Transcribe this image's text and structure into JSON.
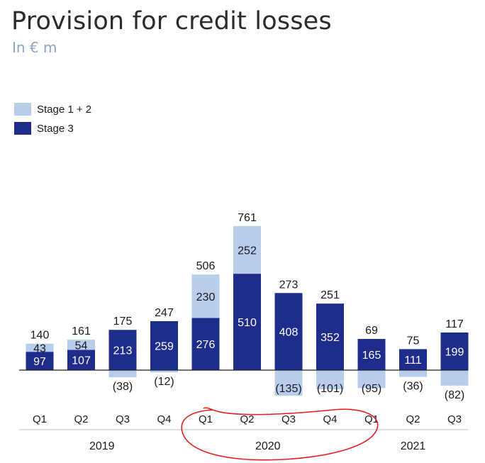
{
  "title": "Provision for credit losses",
  "subtitle": "In € m",
  "colors": {
    "stage12": "#b8cdec",
    "stage3": "#1e2d8c",
    "annotation": "#e02020",
    "axis": "#222222"
  },
  "legend": {
    "stage12_label": "Stage 1 + 2",
    "stage3_label": "Stage 3"
  },
  "chart_data": {
    "type": "bar",
    "stacked": true,
    "categories": [
      "Q1",
      "Q2",
      "Q3",
      "Q4",
      "Q1",
      "Q2",
      "Q3",
      "Q4",
      "Q1",
      "Q2",
      "Q3"
    ],
    "years": [
      {
        "label": "2019",
        "first": 0,
        "last": 3
      },
      {
        "label": "2020",
        "first": 4,
        "last": 7
      },
      {
        "label": "2021",
        "first": 8,
        "last": 10
      }
    ],
    "series": [
      {
        "name": "Stage 1 + 2",
        "values": [
          43,
          54,
          -38,
          -12,
          230,
          252,
          -135,
          -101,
          -95,
          -36,
          -82
        ],
        "labels": [
          "43",
          "54",
          "(38)",
          "(12)",
          "230",
          "252",
          "(135)",
          "(101)",
          "(95)",
          "(36)",
          "(82)"
        ]
      },
      {
        "name": "Stage 3",
        "values": [
          97,
          107,
          213,
          259,
          276,
          510,
          408,
          352,
          165,
          111,
          199
        ],
        "labels": [
          "97",
          "107",
          "213",
          "259",
          "276",
          "510",
          "408",
          "352",
          "165",
          "111",
          "199"
        ]
      }
    ],
    "totals": [
      140,
      161,
      175,
      247,
      506,
      761,
      273,
      251,
      69,
      75,
      117
    ],
    "total_labels": [
      "140",
      "161",
      "175",
      "247",
      "506",
      "761",
      "273",
      "251",
      "69",
      "75",
      "117"
    ],
    "annotation": "2020 quarters circled in red"
  }
}
